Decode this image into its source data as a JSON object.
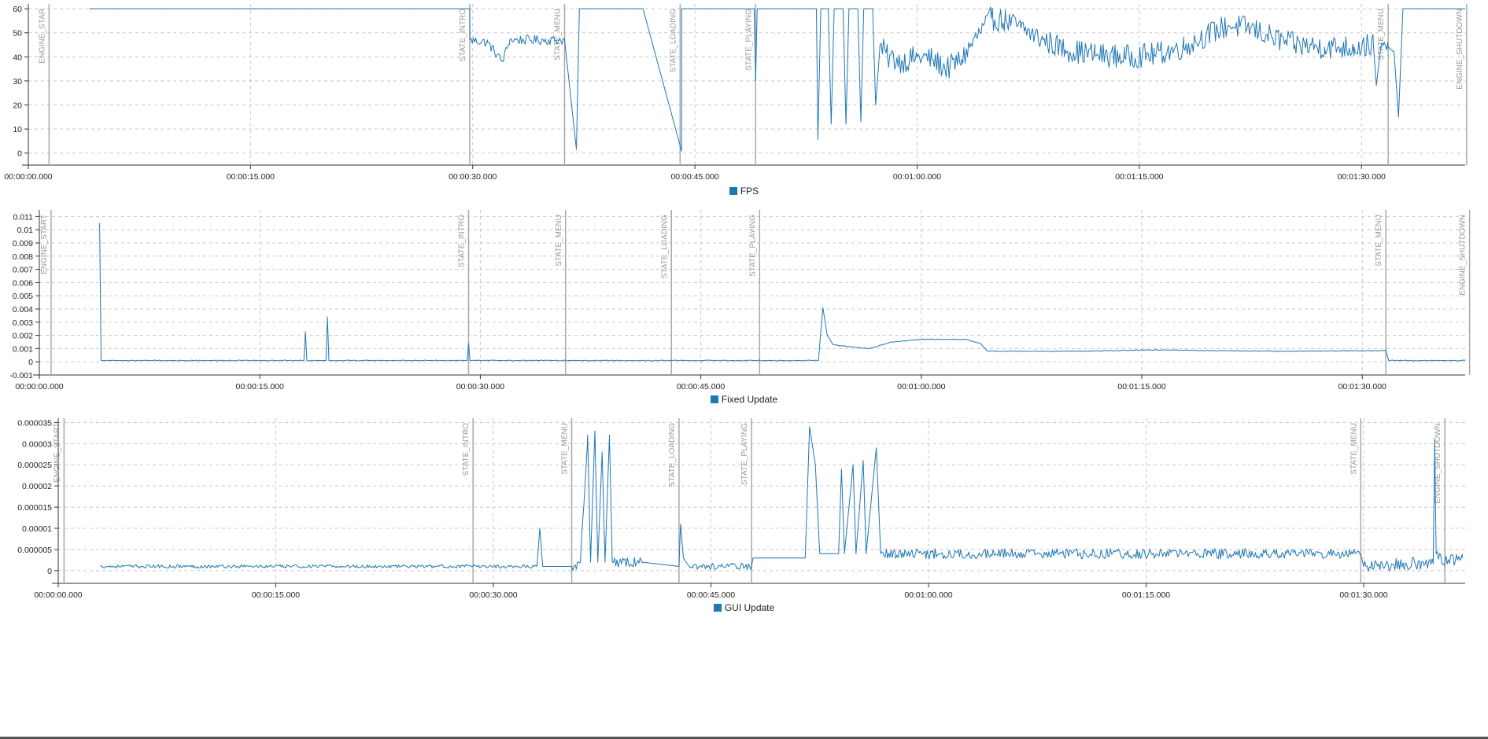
{
  "colors": {
    "series": "#1f77b4",
    "grid": "#c8c8c8",
    "marker": "#a9a9a9"
  },
  "chart_data": [
    {
      "type": "line",
      "series": [
        {
          "name": "FPS"
        }
      ],
      "xlabel": "",
      "ylabel": "",
      "x_unit": "seconds",
      "xlim": [
        0,
        97
      ],
      "ylim": [
        -5,
        62
      ],
      "y_ticks": [
        0,
        10,
        20,
        30,
        40,
        50,
        60
      ],
      "y_tick_labels": [
        "0",
        "10",
        "20",
        "30",
        "40",
        "50",
        "60"
      ],
      "x_ticks": [
        0,
        15,
        30,
        45,
        60,
        75,
        90
      ],
      "x_tick_labels": [
        "00:00:00.000",
        "00:00:15.000",
        "00:00:30.000",
        "00:00:45.000",
        "00:01:00.000",
        "00:01:15.000",
        "00:01:30.000"
      ],
      "markers": [
        {
          "t": 1.4,
          "label": "ENGINE_STAR"
        },
        {
          "t": 29.8,
          "label": "STATE_INTRO"
        },
        {
          "t": 36.2,
          "label": "STATE_MENU"
        },
        {
          "t": 44.0,
          "label": "STATE_LOADING"
        },
        {
          "t": 49.1,
          "label": "STATE_PLAYING"
        },
        {
          "t": 91.8,
          "label": "STATE_MENU"
        },
        {
          "t": 97.1,
          "label": "ENGINE_SHUTDOWN"
        }
      ],
      "profile": [
        [
          4.1,
          60
        ],
        [
          29.8,
          60
        ],
        [
          29.8,
          47
        ],
        [
          31.0,
          46
        ],
        [
          32.0,
          38
        ],
        [
          32.5,
          47
        ],
        [
          36.2,
          47
        ],
        [
          36.5,
          30
        ],
        [
          37.0,
          1.5
        ],
        [
          37.2,
          60
        ],
        [
          41.5,
          60
        ],
        [
          44.1,
          0.8
        ],
        [
          44.1,
          60
        ],
        [
          49.0,
          60
        ],
        [
          49.1,
          30
        ],
        [
          49.2,
          60
        ],
        [
          53.2,
          60
        ],
        [
          53.3,
          5.5
        ],
        [
          53.5,
          60
        ],
        [
          54.0,
          60
        ],
        [
          54.2,
          12
        ],
        [
          54.4,
          60
        ],
        [
          55.0,
          60
        ],
        [
          55.2,
          12
        ],
        [
          55.4,
          60
        ],
        [
          56.0,
          60
        ],
        [
          56.2,
          13
        ],
        [
          56.4,
          60
        ],
        [
          57.0,
          60
        ],
        [
          57.2,
          20
        ],
        [
          57.5,
          45
        ],
        [
          58.0,
          40
        ],
        [
          59.0,
          38
        ],
        [
          60.0,
          40
        ],
        [
          61.0,
          39
        ],
        [
          62.0,
          35
        ],
        [
          63.0,
          39
        ],
        [
          64.0,
          48
        ],
        [
          65.0,
          56
        ],
        [
          66.0,
          55
        ],
        [
          67.0,
          52
        ],
        [
          68.5,
          47
        ],
        [
          70.0,
          43
        ],
        [
          72.0,
          41
        ],
        [
          74.0,
          40
        ],
        [
          76.0,
          41
        ],
        [
          78.0,
          44
        ],
        [
          79.5,
          49
        ],
        [
          81.0,
          53
        ],
        [
          82.5,
          52
        ],
        [
          84.0,
          48
        ],
        [
          85.5,
          45
        ],
        [
          87.5,
          44
        ],
        [
          89.5,
          44
        ],
        [
          90.8,
          45
        ],
        [
          91.0,
          28
        ],
        [
          91.3,
          44
        ],
        [
          91.8,
          44
        ],
        [
          92.2,
          42
        ],
        [
          92.5,
          15
        ],
        [
          92.8,
          60
        ],
        [
          97.0,
          60
        ]
      ],
      "noise": [
        [
          29.8,
          36.2,
          2
        ],
        [
          56.5,
          91.8,
          5
        ]
      ]
    },
    {
      "type": "line",
      "series": [
        {
          "name": "Fixed Update"
        }
      ],
      "xlabel": "",
      "ylabel": "",
      "x_unit": "seconds",
      "xlim": [
        0,
        97
      ],
      "ylim": [
        -0.001,
        0.0115
      ],
      "y_ticks": [
        -0.001,
        0,
        0.001,
        0.002,
        0.003,
        0.004,
        0.005,
        0.006,
        0.007,
        0.008,
        0.009,
        0.01,
        0.011
      ],
      "y_tick_labels": [
        "-0.001",
        "0",
        "0.001",
        "0.002",
        "0.003",
        "0.004",
        "0.005",
        "0.006",
        "0.007",
        "0.008",
        "0.009",
        "0.01",
        "0.011"
      ],
      "x_ticks": [
        0,
        15,
        30,
        45,
        60,
        75,
        90
      ],
      "x_tick_labels": [
        "00:00:00.000",
        "00:00:15.000",
        "00:00:30.000",
        "00:00:45.000",
        "00:01:00.000",
        "00:01:15.000",
        "00:01:30.000"
      ],
      "markers": [
        {
          "t": 0.8,
          "label": "ENGINE_START"
        },
        {
          "t": 29.2,
          "label": "STATE_INTRO"
        },
        {
          "t": 35.8,
          "label": "STATE_MENU"
        },
        {
          "t": 43.0,
          "label": "STATE_LOADING"
        },
        {
          "t": 49.0,
          "label": "STATE_PLAYING"
        },
        {
          "t": 91.6,
          "label": "STATE_MENU"
        },
        {
          "t": 97.3,
          "label": "ENGINE_SHUTDOWN"
        }
      ],
      "profile": [
        [
          4.1,
          0.0105
        ],
        [
          4.2,
          0.0001
        ],
        [
          18.0,
          0.0001
        ],
        [
          18.1,
          0.0023
        ],
        [
          18.2,
          0.0001
        ],
        [
          19.5,
          0.0001
        ],
        [
          19.6,
          0.0034
        ],
        [
          19.7,
          0.0001
        ],
        [
          29.1,
          0.0001
        ],
        [
          29.2,
          0.0014
        ],
        [
          29.3,
          0.0001
        ],
        [
          53.0,
          0.0001
        ],
        [
          53.3,
          0.0041
        ],
        [
          53.6,
          0.002
        ],
        [
          54.0,
          0.0013
        ],
        [
          55.5,
          0.0011
        ],
        [
          56.5,
          0.001
        ],
        [
          58.0,
          0.0015
        ],
        [
          60.0,
          0.0017
        ],
        [
          63.0,
          0.0017
        ],
        [
          64.0,
          0.0014
        ],
        [
          64.5,
          0.0008
        ],
        [
          70.0,
          0.0008
        ],
        [
          76.0,
          0.0009
        ],
        [
          80.0,
          0.00085
        ],
        [
          85.0,
          0.0008
        ],
        [
          91.6,
          0.00085
        ],
        [
          91.8,
          0.0001
        ],
        [
          97.0,
          0.0001
        ]
      ],
      "noise": [
        [
          4.2,
          97.0,
          3e-05
        ],
        [
          53.6,
          91.6,
          8e-05
        ]
      ]
    },
    {
      "type": "line",
      "series": [
        {
          "name": "GUI Update"
        }
      ],
      "xlabel": "",
      "ylabel": "",
      "x_unit": "seconds",
      "xlim": [
        0,
        97
      ],
      "ylim": [
        -3e-06,
        3.6e-05
      ],
      "y_ticks": [
        0,
        5e-06,
        1e-05,
        1.5e-05,
        2e-05,
        2.5e-05,
        3e-05,
        3.5e-05
      ],
      "y_tick_labels": [
        "0",
        "0.000005",
        "0.00001",
        "0.000015",
        "0.00002",
        "0.000025",
        "0.00003",
        "0.000035"
      ],
      "x_ticks": [
        0,
        15,
        30,
        45,
        60,
        75,
        90
      ],
      "x_tick_labels": [
        "00:00:00.000",
        "00:00:15.000",
        "00:00:30.000",
        "00:00:45.000",
        "00:01:00.000",
        "00:01:15.000",
        "00:01:30.000"
      ],
      "markers": [
        {
          "t": 0.4,
          "label": "ENGINE_START"
        },
        {
          "t": 28.6,
          "label": "STATE_INTRO"
        },
        {
          "t": 35.4,
          "label": "STATE_MENU"
        },
        {
          "t": 42.8,
          "label": "STATE_LOADING"
        },
        {
          "t": 47.8,
          "label": "STATE_PLAYING"
        },
        {
          "t": 89.8,
          "label": "STATE_MENU"
        },
        {
          "t": 95.6,
          "label": "ENGINE_SHUTDOWN"
        }
      ],
      "profile": [
        [
          2.9,
          1e-06
        ],
        [
          33.0,
          1e-06
        ],
        [
          33.2,
          1e-05
        ],
        [
          33.4,
          1e-06
        ],
        [
          35.4,
          1e-06
        ],
        [
          36.0,
          2e-06
        ],
        [
          36.5,
          3.2e-05
        ],
        [
          36.7,
          2e-06
        ],
        [
          37.0,
          3.3e-05
        ],
        [
          37.2,
          2e-06
        ],
        [
          37.5,
          2.8e-05
        ],
        [
          37.7,
          2e-06
        ],
        [
          38.0,
          3.2e-05
        ],
        [
          38.2,
          2e-06
        ],
        [
          40.3,
          2e-06
        ],
        [
          42.8,
          1e-06
        ],
        [
          42.9,
          1.1e-05
        ],
        [
          43.1,
          3e-06
        ],
        [
          43.5,
          1e-06
        ],
        [
          47.8,
          1e-06
        ],
        [
          47.9,
          3e-06
        ],
        [
          51.5,
          3e-06
        ],
        [
          51.8,
          3.4e-05
        ],
        [
          52.2,
          2.5e-05
        ],
        [
          52.5,
          4e-06
        ],
        [
          53.8,
          4e-06
        ],
        [
          54.0,
          2.4e-05
        ],
        [
          54.2,
          4e-06
        ],
        [
          54.8,
          2.5e-05
        ],
        [
          55.0,
          4e-06
        ],
        [
          55.5,
          2.6e-05
        ],
        [
          55.7,
          4e-06
        ],
        [
          56.4,
          2.9e-05
        ],
        [
          56.7,
          4e-06
        ],
        [
          89.8,
          4e-06
        ],
        [
          90.0,
          1e-06
        ],
        [
          94.8,
          2e-06
        ],
        [
          94.9,
          3.1e-05
        ],
        [
          95.0,
          4e-06
        ],
        [
          95.6,
          2e-06
        ],
        [
          96.8,
          3e-06
        ]
      ],
      "noise": [
        [
          2.9,
          33.0,
          4e-07
        ],
        [
          35.4,
          40.3,
          1.2e-06
        ],
        [
          43.5,
          47.8,
          8e-07
        ],
        [
          56.7,
          89.8,
          1.2e-06
        ],
        [
          90.0,
          96.8,
          1.5e-06
        ]
      ]
    }
  ]
}
